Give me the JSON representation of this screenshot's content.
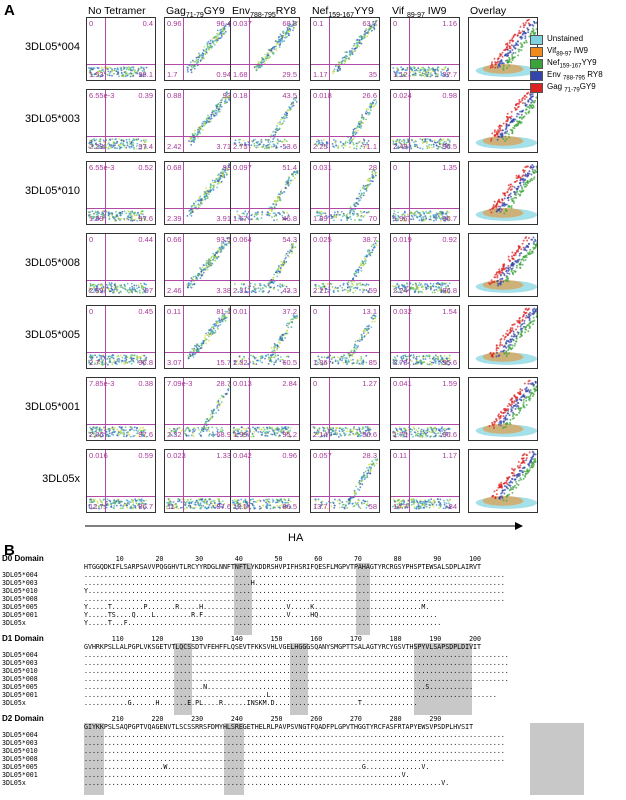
{
  "panel_a_label": "A",
  "panel_b_label": "B",
  "columns": [
    {
      "main": "No Tetramer",
      "sub": "",
      "tail": ""
    },
    {
      "main": "Gag",
      "sub": "71-79",
      "tail": "GY9"
    },
    {
      "main": "Env",
      "sub": "788-795",
      "tail": "RY8"
    },
    {
      "main": "Nef",
      "sub": "159-167",
      "tail": "YY9"
    },
    {
      "main": "Vif ",
      "sub": "89-97",
      "tail": " IW9"
    },
    {
      "main": "Overlay",
      "sub": "",
      "tail": ""
    }
  ],
  "rows": [
    {
      "label": "3DL05*004",
      "q": [
        [
          "0",
          "0.4",
          "1.53",
          "98.1"
        ],
        [
          "0.96",
          "96.4",
          "1.7",
          "0.94"
        ],
        [
          "0.037",
          "68.8",
          "1.68",
          "29.5"
        ],
        [
          "0.1",
          "63.7",
          "1.17",
          "35"
        ],
        [
          "0",
          "1.16",
          "1.12",
          "97.7"
        ]
      ]
    },
    {
      "label": "3DL05*003",
      "q": [
        [
          "6.55e-3",
          "0.39",
          "2.23",
          "97.4"
        ],
        [
          "0.88",
          "93",
          "2.42",
          "3.71"
        ],
        [
          "0.18",
          "43.5",
          "2.75",
          "53.6"
        ],
        [
          "0.018",
          "26.6",
          "2.25",
          "71.1"
        ],
        [
          "0.024",
          "0.98",
          "2.48",
          "96.5"
        ]
      ]
    },
    {
      "label": "3DL05*010",
      "q": [
        [
          "6.55e-3",
          "0.52",
          "1.89",
          "97.6"
        ],
        [
          "0.68",
          "93",
          "2.39",
          "3.91"
        ],
        [
          "0.097",
          "51.4",
          "1.67",
          "46.8"
        ],
        [
          "0.031",
          "28",
          "1.89",
          "70"
        ],
        [
          "0",
          "1.35",
          "1.96",
          "96.7"
        ]
      ]
    },
    {
      "label": "3DL05*008",
      "q": [
        [
          "0",
          "0.44",
          "2.59",
          "97"
        ],
        [
          "0.66",
          "93.5",
          "2.46",
          "3.38"
        ],
        [
          "0.064",
          "54.3",
          "2.31",
          "43.3"
        ],
        [
          "0.025",
          "38.7",
          "2.21",
          "59"
        ],
        [
          "0.019",
          "0.92",
          "2.24",
          "96.8"
        ]
      ]
    },
    {
      "label": "3DL05*005",
      "q": [
        [
          "0",
          "0.45",
          "2.7",
          "96.8"
        ],
        [
          "0.11",
          "81.1",
          "3.07",
          "15.7"
        ],
        [
          "0.01",
          "37.2",
          "2.32",
          "60.5"
        ],
        [
          "0",
          "13.1",
          "1.86",
          "85"
        ],
        [
          "0.032",
          "1.54",
          "2.78",
          "95.6"
        ]
      ]
    },
    {
      "label": "3DL05*001",
      "q": [
        [
          "7.85e-3",
          "0.38",
          "2.06",
          "97.6"
        ],
        [
          "7.09e-3",
          "28.7",
          "2.32",
          "68.9"
        ],
        [
          "0.013",
          "2.84",
          "1.99",
          "95.2"
        ],
        [
          "0",
          "1.27",
          "2.14",
          "96.6"
        ],
        [
          "0.041",
          "1.59",
          "1.75",
          "96.6"
        ]
      ]
    },
    {
      "label": "3DL05x",
      "q": [
        [
          "0.016",
          "0.59",
          "12.7",
          "86.7"
        ],
        [
          "0.023",
          "1.33",
          "11",
          "87.6"
        ],
        [
          "0.042",
          "0.96",
          "12.5",
          "86.5"
        ],
        [
          "0.057",
          "28.3",
          "13.7",
          "58"
        ],
        [
          "0.11",
          "1.17",
          "14.7",
          "84"
        ]
      ]
    }
  ],
  "legend": [
    {
      "main": "Unstained",
      "sub": "",
      "tail": "",
      "color": "#7fd3e0"
    },
    {
      "main": "Vif",
      "sub": "89-97",
      "tail": " IW9",
      "color": "#f08a1c"
    },
    {
      "main": "Nef",
      "sub": "159-167",
      "tail": "YY9",
      "color": "#3aa43a"
    },
    {
      "main": "Env ",
      "sub": "788-795",
      "tail": " RY8",
      "color": "#3344aa"
    },
    {
      "main": "Gag ",
      "sub": "71-79",
      "tail": "GY9",
      "color": "#dd2222"
    }
  ],
  "xaxis_label": "HA",
  "alleles": [
    "3DL05*004",
    "3DL05*003",
    "3DL05*010",
    "3DL05*008",
    "3DL05*005",
    "3DL05*001",
    "3DL05x"
  ],
  "domains": [
    {
      "title": "D0 Domain",
      "nums": "        10        20        30        40        50        60        70        80        90       100",
      "ref": "HTGGQDKIFLSARPSAVVPQGGHVTLRCYYRDGLNNFTNFTLYKDDRSHVPIFHSRIFQESFLMGPVTPAHAGTYRCRGSYPHSPTEWSALSDPLAIRVT",
      "var": [
        "..........................................................................................................",
        "..........................................H...............................................................",
        "Y.........................................................................................................",
        "..........................................................................................................",
        "Y.....T........P.......R.....H.....................V.....K...........................M.",
        "Y.....TS....Q....L.........R.F.....................V.....HQ..............................",
        "Y.....T...F..............................................................................."
      ]
    },
    {
      "title": "D1 Domain",
      "nums": "       110       120       130       140       150       160       170       180       190       200",
      "ref": "GVHRKPSLLALPGPLVKSGETVTLQCSSDTVFEHFFLQSEVTFKKSVHLVGELHGGGSQANYSMGPTTSALAGTYRCYGSVTHSPYVLSAPSDPLDIVIT",
      "var": [
        "...........................................................................................................",
        "...........................................................................................................",
        "...........................................................................................................",
        "...........................................................................................................",
        "..............................N.......................................................S...........",
        "..............................................L.........................................................",
        "...........G......H.......E.PL....R......INSKM.D.....................T.............."
      ]
    },
    {
      "title": "D2 Domain",
      "nums": "       210       220       230       240       250       260       270       280       290",
      "ref": "GIYKKPSLSAQPGPTVQAGENVTLSCSSRRSFDMYHLSREGETHELRLPAVPSVNGTFQADFPLGPVTHGGTYRCFASFRTAPYEWSVPSDPLHVSIT",
      "var": [
        "..........................................................................................................",
        "..........................................................................................................",
        "..........................................................................................................",
        "..........................................................................................................",
        "....................W.................................................G..............V.",
        "................................................................................V.",
        "..........................................................................................V."
      ]
    }
  ]
}
